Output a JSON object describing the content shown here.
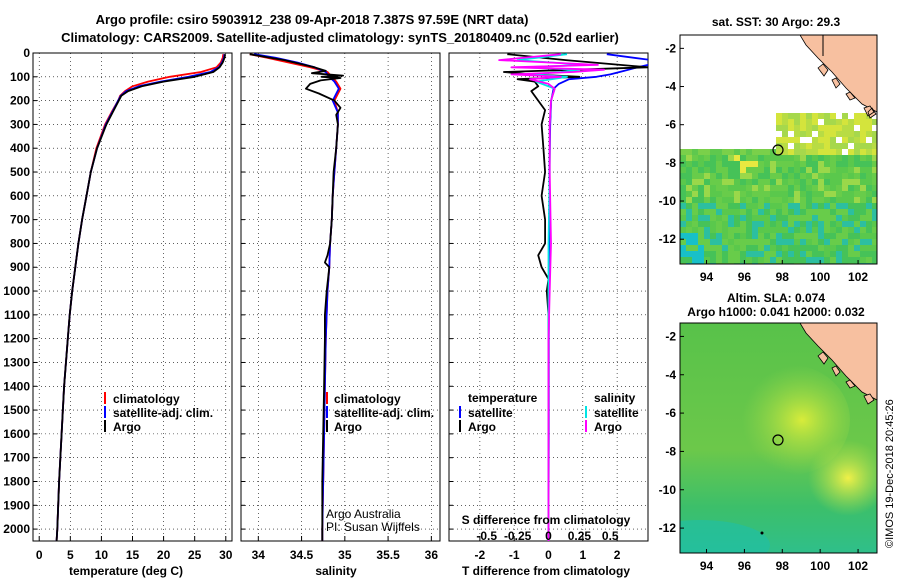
{
  "title": {
    "line1": "Argo profile: csiro 5903912_238 09-Apr-2018 7.387S 97.59E (NRT data)",
    "line2": "Climatology: CARS2009. Satellite-adjusted climatology: synTS_20180409.nc (0.52d earlier)"
  },
  "credit": "©IMOS 19-Dec-2018 20:45:26",
  "colors": {
    "climatology": "#ff0000",
    "satellite": "#0000ff",
    "argo": "#000000",
    "sat_s": "#00e5e5",
    "argo_s": "#ff00ff",
    "land": "#f7c0a0"
  },
  "depth_axis": {
    "min": 0,
    "max": 2050,
    "ticks": [
      "0",
      "100",
      "200",
      "300",
      "400",
      "500",
      "600",
      "700",
      "800",
      "900",
      "1000",
      "1100",
      "1200",
      "1300",
      "1400",
      "1500",
      "1600",
      "1700",
      "1800",
      "1900",
      "2000"
    ]
  },
  "chart_data": [
    {
      "type": "line",
      "name": "temperature",
      "xlabel": "temperature (deg C)",
      "xlim": [
        -1,
        31
      ],
      "xticks": [
        "0",
        "5",
        "10",
        "15",
        "20",
        "25",
        "30"
      ],
      "legend": {
        "climatology": "climatology",
        "satellite": "satellite-adj. clim.",
        "argo": "Argo"
      },
      "series": [
        {
          "name": "climatology",
          "depth": [
            5,
            20,
            40,
            60,
            80,
            100,
            120,
            140,
            160,
            180,
            200,
            250,
            300,
            400,
            500,
            600,
            700,
            800,
            900,
            1000,
            1100,
            1200,
            1400,
            1600,
            1800,
            2000,
            2050
          ],
          "values": [
            29.6,
            29.5,
            29.2,
            28.5,
            26,
            21,
            17.5,
            15,
            13.8,
            13,
            12.7,
            11.6,
            10.6,
            9.2,
            8.3,
            7.6,
            6.9,
            6.3,
            5.8,
            5.3,
            4.9,
            4.6,
            4.0,
            3.6,
            3.2,
            2.9,
            2.8
          ]
        },
        {
          "name": "satellite-adj. clim.",
          "depth": [
            5,
            20,
            40,
            60,
            80,
            100,
            120,
            140,
            160,
            180,
            200,
            250,
            300,
            400,
            500,
            600,
            700,
            800,
            900,
            1000,
            1100,
            1200,
            1400,
            1600,
            1800,
            2000,
            2050
          ],
          "values": [
            29.8,
            29.7,
            29.4,
            28.9,
            27.5,
            24,
            19.5,
            16,
            14,
            13.1,
            12.7,
            11.7,
            10.7,
            9.3,
            8.3,
            7.6,
            6.9,
            6.3,
            5.8,
            5.3,
            4.9,
            4.6,
            4.0,
            3.6,
            3.2,
            2.9,
            2.8
          ]
        },
        {
          "name": "Argo",
          "depth": [
            5,
            20,
            40,
            60,
            80,
            100,
            120,
            140,
            160,
            180,
            200,
            250,
            300,
            400,
            500,
            600,
            700,
            800,
            900,
            1000,
            1100,
            1200,
            1400,
            1600,
            1800,
            2000,
            2050
          ],
          "values": [
            29.9,
            29.8,
            29.5,
            29,
            28,
            25,
            20,
            16.5,
            14.3,
            13.2,
            12.8,
            11.8,
            10.8,
            9.3,
            8.3,
            7.6,
            6.9,
            6.3,
            5.8,
            5.3,
            4.9,
            4.6,
            4.0,
            3.6,
            3.2,
            2.9,
            2.8
          ]
        }
      ]
    },
    {
      "type": "line",
      "name": "salinity",
      "xlabel": "salinity",
      "xlim": [
        33.8,
        36.1
      ],
      "xticks": [
        "34",
        "34.5",
        "35",
        "35.5",
        "36"
      ],
      "legend": {
        "climatology": "climatology",
        "satellite": "satellite-adj. clim.",
        "argo": "Argo"
      },
      "annotation": {
        "line1": "Argo Australia",
        "line2": "PI: Susan Wijffels"
      },
      "series": [
        {
          "name": "climatology",
          "depth": [
            5,
            20,
            40,
            60,
            80,
            100,
            120,
            150,
            200,
            250,
            300,
            400,
            500,
            600,
            700,
            800,
            900,
            1000,
            1200,
            1400,
            1600,
            1800,
            2000,
            2050
          ],
          "values": [
            33.9,
            34.1,
            34.35,
            34.6,
            34.8,
            34.85,
            34.9,
            34.95,
            34.88,
            34.92,
            34.92,
            34.9,
            34.88,
            34.86,
            34.85,
            34.83,
            34.82,
            34.8,
            34.78,
            34.77,
            34.76,
            34.75,
            34.74,
            34.74
          ]
        },
        {
          "name": "satellite-adj. clim.",
          "depth": [
            5,
            20,
            40,
            60,
            80,
            100,
            120,
            150,
            200,
            250,
            300,
            400,
            500,
            600,
            700,
            800,
            900,
            1000,
            1200,
            1400,
            1600,
            1800,
            2000,
            2050
          ],
          "values": [
            33.95,
            34.2,
            34.45,
            34.65,
            34.78,
            34.82,
            34.88,
            34.93,
            34.86,
            34.92,
            34.92,
            34.9,
            34.88,
            34.86,
            34.85,
            34.83,
            34.82,
            34.8,
            34.78,
            34.77,
            34.76,
            34.75,
            34.74,
            34.74
          ]
        },
        {
          "name": "Argo",
          "depth": [
            5,
            30,
            60,
            75,
            85,
            95,
            100,
            105,
            115,
            130,
            150,
            170,
            200,
            230,
            260,
            300,
            400,
            500,
            600,
            700,
            800,
            850,
            880,
            900,
            1000,
            1100,
            1200,
            1400,
            1600,
            1800,
            2000,
            2050
          ],
          "values": [
            33.9,
            34.3,
            34.65,
            34.78,
            34.62,
            34.98,
            34.73,
            34.95,
            34.72,
            34.6,
            34.55,
            34.7,
            34.88,
            34.95,
            34.9,
            34.92,
            34.9,
            34.87,
            34.86,
            34.85,
            34.83,
            34.8,
            34.77,
            34.82,
            34.79,
            34.77,
            34.77,
            34.76,
            34.75,
            34.74,
            34.74,
            34.74
          ]
        }
      ]
    },
    {
      "type": "line",
      "name": "difference",
      "xlabel": "T difference from climatology",
      "xlim": [
        -2.9,
        2.9
      ],
      "xticks": [
        "-2",
        "-1",
        "0",
        "1",
        "2"
      ],
      "xlabel2": "S difference from climatology",
      "xticks2": [
        "-0.5",
        "-0.25",
        "0",
        "0.25",
        "0.5"
      ],
      "legend": {
        "temperature": "temperature",
        "salinity": "salinity",
        "satellite": "satellite",
        "argo": "Argo"
      },
      "series": [
        {
          "name": "temperature satellite",
          "depth": [
            5,
            30,
            50,
            60,
            75,
            90,
            100,
            110,
            130,
            150,
            200,
            300,
            500,
            800,
            1200,
            1600,
            2000,
            2050
          ],
          "values": [
            1.7,
            3.0,
            2.9,
            2.6,
            2.2,
            1.8,
            1.4,
            0.6,
            0.3,
            0.15,
            0.08,
            0.05,
            0.03,
            0.02,
            0.01,
            0.01,
            0,
            0
          ]
        },
        {
          "name": "temperature Argo",
          "depth": [
            5,
            30,
            60,
            80,
            90,
            100,
            110,
            120,
            140,
            160,
            200,
            240,
            300,
            400,
            500,
            600,
            700,
            800,
            850,
            900,
            950,
            1000,
            1100,
            1200,
            1500,
            1700,
            1900,
            2000,
            2050
          ],
          "values": [
            -1.2,
            0.5,
            2.9,
            -1.3,
            -0.5,
            0.9,
            -0.9,
            -0.4,
            -0.3,
            -0.5,
            -0.3,
            -0.1,
            -0.2,
            -0.15,
            -0.1,
            -0.2,
            -0.1,
            -0.1,
            -0.3,
            -0.2,
            0,
            -0.05,
            0,
            0,
            0,
            0,
            0,
            0,
            0
          ]
        },
        {
          "name": "salinity satellite",
          "depth": [
            5,
            30,
            50,
            60,
            70,
            80,
            90,
            100,
            120,
            150,
            200,
            300,
            500,
            800,
            1200,
            1600,
            2000,
            2050
          ],
          "values": [
            0.15,
            -0.25,
            0.3,
            -0.2,
            0.25,
            0.1,
            -0.15,
            0.15,
            -0.1,
            0.05,
            0.02,
            0.01,
            0.01,
            0,
            0,
            0,
            0,
            0
          ]
        },
        {
          "name": "salinity Argo",
          "depth": [
            5,
            30,
            50,
            60,
            70,
            80,
            90,
            100,
            110,
            130,
            150,
            200,
            300,
            500,
            800,
            1000,
            1200,
            1600,
            2000,
            2050
          ],
          "values": [
            0.1,
            -0.4,
            0.4,
            -0.3,
            0.45,
            0.2,
            -0.3,
            0.1,
            -0.15,
            0,
            0.05,
            0.02,
            0.01,
            0.01,
            0.02,
            0.01,
            0,
            0,
            0,
            0
          ]
        }
      ]
    },
    {
      "type": "heatmap",
      "name": "sst-map",
      "title": "sat. SST: 30 Argo: 29.3",
      "xticks": [
        "94",
        "96",
        "98",
        "100",
        "102"
      ],
      "yticks": [
        "-2",
        "-4",
        "-6",
        "-8",
        "-10",
        "-12"
      ],
      "lon_range": [
        92.6,
        103.0
      ],
      "lat_range": [
        -13.3,
        -1.3
      ],
      "argo_position": {
        "lon": 97.59,
        "lat": -7.387
      }
    },
    {
      "type": "heatmap",
      "name": "sla-map",
      "title": "Altim. SLA: 0.074",
      "subtitle": "Argo h1000: 0.041 h2000: 0.032",
      "xticks": [
        "94",
        "96",
        "98",
        "100",
        "102"
      ],
      "yticks": [
        "-2",
        "-4",
        "-6",
        "-8",
        "-10",
        "-12"
      ],
      "lon_range": [
        92.6,
        103.0
      ],
      "lat_range": [
        -13.3,
        -1.3
      ],
      "argo_position": {
        "lon": 97.59,
        "lat": -7.387
      }
    }
  ]
}
